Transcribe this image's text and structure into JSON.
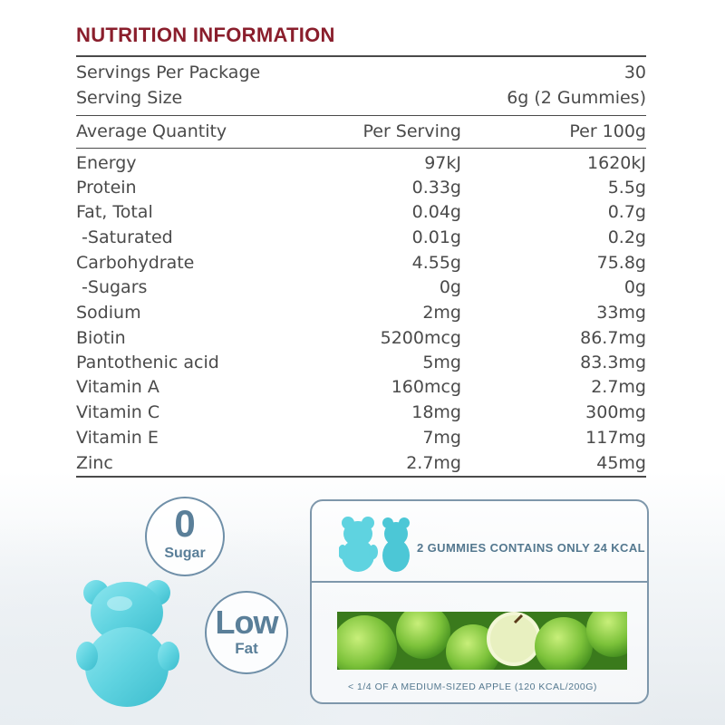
{
  "title": "NUTRITION INFORMATION",
  "servings_per_package": {
    "label": "Servings Per Package",
    "value": "30"
  },
  "serving_size": {
    "label": "Serving Size",
    "value": "6g (2 Gummies)"
  },
  "table_header": {
    "col1": "Average Quantity",
    "col2": "Per Serving",
    "col3": "Per 100g"
  },
  "nutrients": [
    {
      "name": "Energy",
      "per_serving": "97kJ",
      "per_100g": "1620kJ"
    },
    {
      "name": "Protein",
      "per_serving": "0.33g",
      "per_100g": "5.5g"
    },
    {
      "name": "Fat, Total",
      "per_serving": "0.04g",
      "per_100g": "0.7g"
    },
    {
      "name": " -Saturated",
      "per_serving": "0.01g",
      "per_100g": "0.2g"
    },
    {
      "name": "Carbohydrate",
      "per_serving": "4.55g",
      "per_100g": "75.8g"
    },
    {
      "name": " -Sugars",
      "per_serving": "0g",
      "per_100g": "0g"
    },
    {
      "name": "Sodium",
      "per_serving": "2mg",
      "per_100g": "33mg"
    },
    {
      "name": "Biotin",
      "per_serving": "5200mcg",
      "per_100g": "86.7mg"
    },
    {
      "name": "Pantothenic acid",
      "per_serving": "5mg",
      "per_100g": "83.3mg"
    },
    {
      "name": "Vitamin A",
      "per_serving": "160mcg",
      "per_100g": "2.7mg"
    },
    {
      "name": "Vitamin C",
      "per_serving": "18mg",
      "per_100g": "300mg"
    },
    {
      "name": "Vitamin E",
      "per_serving": "7mg",
      "per_100g": "117mg"
    },
    {
      "name": "Zinc",
      "per_serving": "2.7mg",
      "per_100g": "45mg"
    }
  ],
  "badges": {
    "sugar": {
      "big": "0",
      "small": "Sugar"
    },
    "fat": {
      "big": "Low",
      "small": "Fat"
    }
  },
  "panel": {
    "calorie_text": "2 GUMMIES CONTAINS ONLY 24 KCAL",
    "comparison_text": "< 1/4 OF A MEDIUM-SIZED APPLE (120 KCAL/200G)"
  },
  "colors": {
    "title": "#8a1e2c",
    "text": "#4a4a4a",
    "accent": "#54788f",
    "gummy": "#5fd3e0"
  }
}
